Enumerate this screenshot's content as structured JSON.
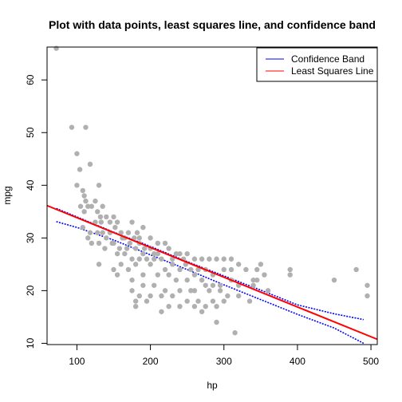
{
  "chart_data": {
    "type": "scatter",
    "title": "Plot with data points, least squares line, and confidence band",
    "xlabel": "hp",
    "ylabel": "mpg",
    "xlim": [
      59.4,
      508.6
    ],
    "ylim": [
      9.76,
      66.24
    ],
    "xticks": [
      100,
      200,
      300,
      400,
      500
    ],
    "yticks": [
      10,
      20,
      30,
      40,
      50,
      60
    ],
    "legend_position": "top-right",
    "legend": [
      {
        "label": "Confidence Band",
        "color": "#0000ff"
      },
      {
        "label": "Least Squares Line",
        "color": "#ff0000"
      }
    ],
    "colors": {
      "points": "#b0b0b0",
      "fit": "#ff0000",
      "band": "#0000ff"
    },
    "least_squares_line": {
      "intercept": 39.5,
      "slope": -0.0565
    },
    "confidence_band": {
      "x": [
        72,
        100,
        150,
        200,
        250,
        300,
        350,
        400,
        450,
        490
      ],
      "upper": [
        35.6,
        34.0,
        31.1,
        28.4,
        25.5,
        22.8,
        20.1,
        17.3,
        15.6,
        14.5
      ],
      "lower": [
        33.1,
        32.0,
        29.6,
        26.8,
        24.0,
        21.1,
        18.3,
        15.5,
        12.9,
        10.0
      ]
    },
    "points": [
      [
        72,
        66
      ],
      [
        93,
        51
      ],
      [
        100,
        46
      ],
      [
        112,
        51
      ],
      [
        104,
        43
      ],
      [
        118,
        44
      ],
      [
        100,
        40
      ],
      [
        108,
        39
      ],
      [
        110,
        38
      ],
      [
        112,
        37
      ],
      [
        105,
        36
      ],
      [
        115,
        36
      ],
      [
        120,
        36
      ],
      [
        130,
        40
      ],
      [
        125,
        37
      ],
      [
        135,
        36
      ],
      [
        128,
        35
      ],
      [
        140,
        34
      ],
      [
        132,
        34
      ],
      [
        110,
        35
      ],
      [
        125,
        33
      ],
      [
        133,
        33
      ],
      [
        145,
        33
      ],
      [
        150,
        34
      ],
      [
        155,
        33
      ],
      [
        108,
        32
      ],
      [
        118,
        31
      ],
      [
        135,
        31
      ],
      [
        145,
        31
      ],
      [
        152,
        32
      ],
      [
        160,
        31
      ],
      [
        170,
        31
      ],
      [
        178,
        30
      ],
      [
        185,
        30
      ],
      [
        190,
        32
      ],
      [
        165,
        30
      ],
      [
        140,
        30
      ],
      [
        130,
        29
      ],
      [
        115,
        30
      ],
      [
        150,
        29
      ],
      [
        158,
        28
      ],
      [
        168,
        28
      ],
      [
        180,
        28
      ],
      [
        192,
        28
      ],
      [
        200,
        28
      ],
      [
        210,
        29
      ],
      [
        220,
        29
      ],
      [
        225,
        28
      ],
      [
        235,
        27
      ],
      [
        240,
        27
      ],
      [
        250,
        27
      ],
      [
        155,
        27
      ],
      [
        165,
        27
      ],
      [
        175,
        26
      ],
      [
        185,
        26
      ],
      [
        195,
        26
      ],
      [
        205,
        26
      ],
      [
        215,
        26
      ],
      [
        230,
        26
      ],
      [
        245,
        26
      ],
      [
        260,
        26
      ],
      [
        270,
        26
      ],
      [
        280,
        26
      ],
      [
        290,
        26
      ],
      [
        300,
        26
      ],
      [
        130,
        25
      ],
      [
        160,
        25
      ],
      [
        180,
        25
      ],
      [
        200,
        25
      ],
      [
        220,
        24
      ],
      [
        240,
        24
      ],
      [
        255,
        24
      ],
      [
        265,
        24
      ],
      [
        275,
        24
      ],
      [
        285,
        23
      ],
      [
        300,
        24
      ],
      [
        310,
        24
      ],
      [
        330,
        24
      ],
      [
        345,
        24
      ],
      [
        150,
        24
      ],
      [
        170,
        24
      ],
      [
        190,
        23
      ],
      [
        210,
        23
      ],
      [
        225,
        23
      ],
      [
        235,
        22
      ],
      [
        250,
        22
      ],
      [
        270,
        22
      ],
      [
        285,
        21
      ],
      [
        295,
        21
      ],
      [
        310,
        22
      ],
      [
        320,
        21
      ],
      [
        340,
        21
      ],
      [
        350,
        25
      ],
      [
        155,
        23
      ],
      [
        175,
        22
      ],
      [
        190,
        21
      ],
      [
        205,
        21
      ],
      [
        220,
        20
      ],
      [
        240,
        20
      ],
      [
        260,
        20
      ],
      [
        280,
        20
      ],
      [
        295,
        20
      ],
      [
        305,
        19
      ],
      [
        320,
        19
      ],
      [
        175,
        20
      ],
      [
        185,
        19
      ],
      [
        200,
        19
      ],
      [
        215,
        19
      ],
      [
        230,
        19
      ],
      [
        250,
        18
      ],
      [
        265,
        18
      ],
      [
        285,
        18
      ],
      [
        300,
        18
      ],
      [
        335,
        18
      ],
      [
        180,
        18
      ],
      [
        195,
        18
      ],
      [
        225,
        17
      ],
      [
        240,
        17
      ],
      [
        260,
        17
      ],
      [
        275,
        17
      ],
      [
        290,
        17
      ],
      [
        180,
        17
      ],
      [
        215,
        16
      ],
      [
        270,
        16
      ],
      [
        290,
        14
      ],
      [
        315,
        12
      ],
      [
        390,
        24
      ],
      [
        390,
        23
      ],
      [
        450,
        22
      ],
      [
        480,
        24
      ],
      [
        495,
        21
      ],
      [
        495,
        19
      ],
      [
        340,
        22
      ],
      [
        360,
        20
      ],
      [
        320,
        25
      ],
      [
        310,
        26
      ],
      [
        200,
        30
      ],
      [
        210,
        27
      ],
      [
        162,
        30
      ],
      [
        148,
        29
      ],
      [
        172,
        29
      ],
      [
        182,
        31
      ],
      [
        190,
        27
      ],
      [
        205,
        27
      ],
      [
        230,
        25
      ],
      [
        248,
        25
      ],
      [
        260,
        23
      ],
      [
        175,
        33
      ],
      [
        185,
        29
      ],
      [
        120,
        29
      ],
      [
        138,
        28
      ],
      [
        128,
        31
      ],
      [
        255,
        20
      ],
      [
        275,
        21
      ],
      [
        345,
        22
      ],
      [
        355,
        23
      ]
    ]
  }
}
